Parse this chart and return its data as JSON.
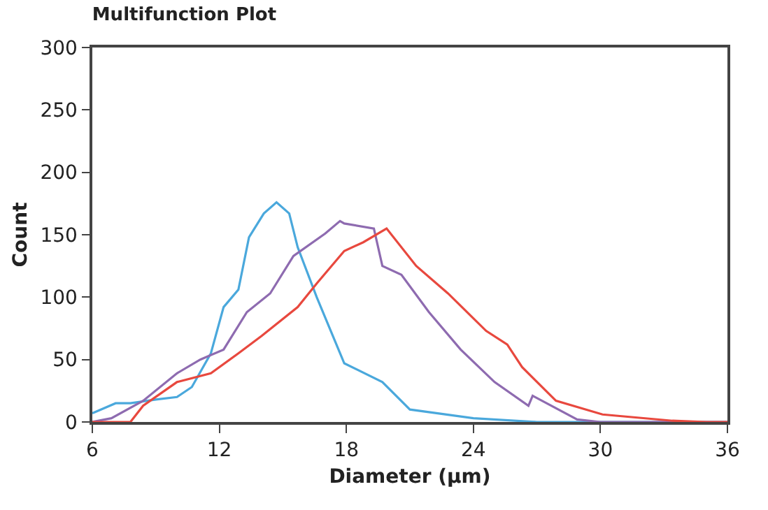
{
  "chart_data": {
    "type": "line",
    "title": "Multifunction Plot",
    "xlabel": "Diameter (µm)",
    "ylabel": "Count",
    "xlim": [
      6,
      36
    ],
    "xticks": [
      6,
      12,
      18,
      24,
      30,
      36
    ],
    "ylim": [
      0,
      300
    ],
    "yticks": [
      0,
      50,
      100,
      150,
      200,
      250,
      300
    ],
    "grid": false,
    "series": [
      {
        "color": "#4aa8dc",
        "x": [
          6,
          7.1,
          7.8,
          9,
          10,
          10.7,
          11.6,
          12.2,
          12.9,
          13.4,
          14.1,
          14.7,
          15.3,
          15.7,
          16.6,
          17.9,
          19.7,
          21,
          24,
          27,
          36
        ],
        "values": [
          7,
          15,
          15,
          18,
          20,
          28,
          55,
          92,
          106,
          148,
          167,
          176,
          167,
          140,
          100,
          47,
          32,
          10,
          3,
          0,
          0
        ]
      },
      {
        "color": "#8e6bb0",
        "x": [
          6,
          6.9,
          8.4,
          10,
          11.1,
          12.2,
          13.3,
          14.4,
          15.5,
          17,
          17.7,
          17.9,
          19.3,
          19.7,
          20.6,
          21.9,
          23.4,
          25,
          26.6,
          26.8,
          28.9,
          30,
          36
        ],
        "values": [
          0,
          3,
          17,
          39,
          50,
          58,
          88,
          103,
          133,
          151,
          161,
          159,
          155,
          125,
          118,
          88,
          58,
          32,
          13,
          21,
          2,
          0,
          0
        ]
      },
      {
        "color": "#e8483e",
        "x": [
          6,
          7,
          7.8,
          8.4,
          10,
          11.6,
          12.9,
          14,
          15.7,
          16.6,
          17.9,
          18.8,
          19.9,
          21.3,
          22.8,
          24.6,
          25.6,
          26.3,
          27.9,
          30.1,
          33.4,
          35,
          36
        ],
        "values": [
          0,
          0,
          0,
          13,
          32,
          39,
          55,
          69,
          92,
          111,
          137,
          144,
          155,
          125,
          103,
          73,
          62,
          44,
          17,
          6,
          1,
          0,
          0
        ]
      }
    ]
  }
}
